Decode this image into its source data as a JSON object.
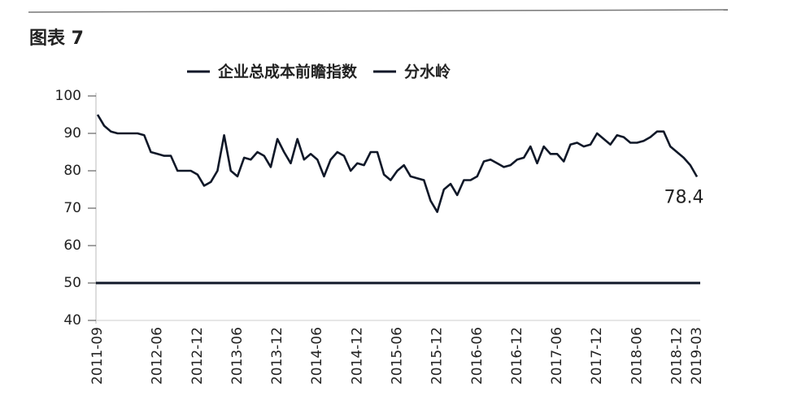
{
  "chart_data": {
    "type": "line",
    "title": "图表 7",
    "categories": [
      "2011-09",
      null,
      null,
      null,
      null,
      null,
      null,
      null,
      null,
      "2012-06",
      null,
      null,
      null,
      null,
      null,
      "2012-12",
      null,
      null,
      null,
      null,
      null,
      "2013-06",
      null,
      null,
      null,
      null,
      null,
      "2013-12",
      null,
      null,
      null,
      null,
      null,
      "2014-06",
      null,
      null,
      null,
      null,
      null,
      "2014-12",
      null,
      null,
      null,
      null,
      null,
      "2015-06",
      null,
      null,
      null,
      null,
      null,
      "2015-12",
      null,
      null,
      null,
      null,
      null,
      "2016-06",
      null,
      null,
      null,
      null,
      null,
      "2016-12",
      null,
      null,
      null,
      null,
      null,
      "2017-06",
      null,
      null,
      null,
      null,
      null,
      "2017-12",
      null,
      null,
      null,
      null,
      null,
      "2018-06",
      null,
      null,
      null,
      null,
      null,
      "2018-12",
      null,
      null,
      "2019-03"
    ],
    "series": [
      {
        "name": "企业总成本前瞻指数",
        "color": "#101828",
        "values": [
          95,
          92,
          90.5,
          90,
          90,
          90,
          90,
          89.5,
          85,
          84.5,
          84,
          84,
          80,
          80,
          80,
          79,
          76,
          77,
          80,
          89.5,
          80,
          78.5,
          83.5,
          83,
          85,
          84,
          81,
          88.5,
          85,
          82,
          88.5,
          83,
          84.5,
          83,
          78.5,
          83,
          85,
          84,
          80,
          82,
          81.5,
          85,
          85,
          79,
          77.5,
          80,
          81.5,
          78.5,
          78,
          77.5,
          72,
          69,
          75,
          76.5,
          73.5,
          77.5,
          77.5,
          78.5,
          82.5,
          83,
          82,
          81,
          81.5,
          83,
          83.5,
          86.5,
          82,
          86.5,
          84.5,
          84.5,
          82.5,
          87,
          87.5,
          86.5,
          87,
          90,
          88.5,
          87,
          89.5,
          89,
          87.5,
          87.5,
          88,
          89,
          90.5,
          90.5,
          86.5,
          85,
          83.5,
          81.5,
          78.4
        ]
      }
    ],
    "reference_line": {
      "name": "分水岭",
      "value": 50,
      "color": "#101828"
    },
    "ylim": [
      40,
      100
    ],
    "yticks": [
      40,
      50,
      60,
      70,
      80,
      90,
      100
    ],
    "grid": false
  }
}
